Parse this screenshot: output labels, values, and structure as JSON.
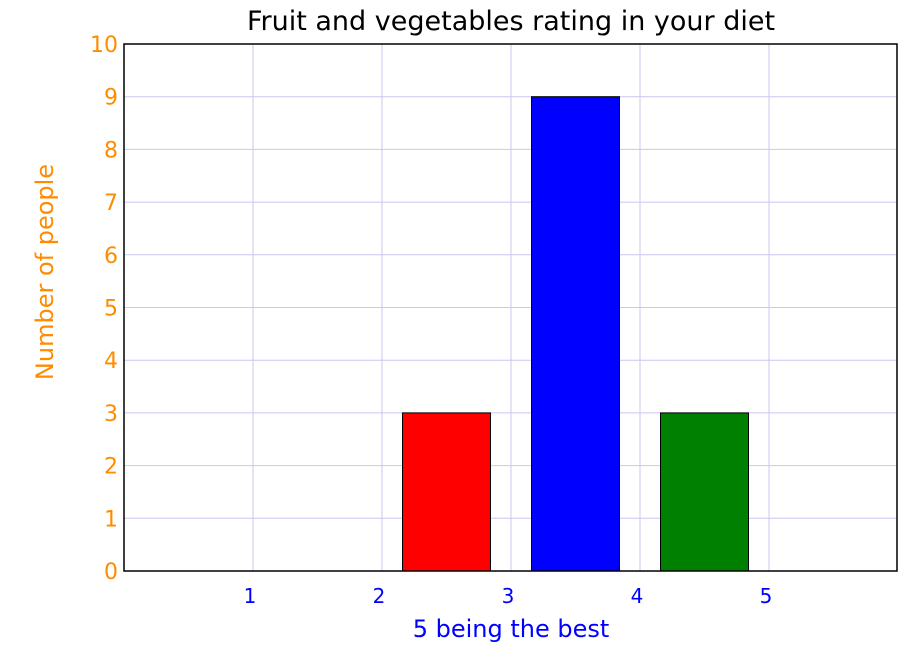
{
  "chart_data": {
    "type": "bar",
    "title": "Fruit and vegetables rating in your diet",
    "xlabel": "5 being the best",
    "ylabel": "Number of people",
    "categories": [
      "1",
      "2",
      "3",
      "4",
      "5"
    ],
    "values": [
      0,
      3,
      9,
      3,
      0
    ],
    "bar_colors": [
      "#ff0000",
      "#ff0000",
      "#0000ff",
      "#008000",
      "#008000"
    ],
    "ylim": [
      0,
      10
    ],
    "yticks": [
      "0",
      "1",
      "2",
      "3",
      "4",
      "5",
      "6",
      "7",
      "8",
      "9",
      "10"
    ],
    "grid": true,
    "colors": {
      "y_axis_text": "#ff8c00",
      "x_axis_text": "#0000ff",
      "grid": "#c8c8f0"
    }
  }
}
